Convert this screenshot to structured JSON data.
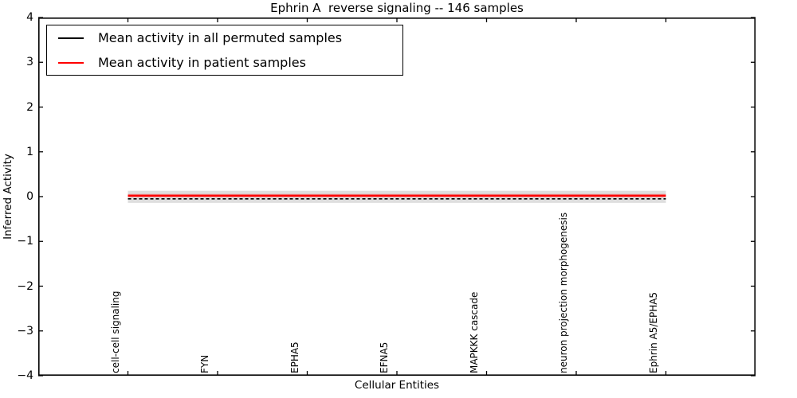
{
  "figure": {
    "background": "#ffffff",
    "frame_color": "#000000"
  },
  "chart_data": {
    "type": "line",
    "title": "Ephrin A  reverse signaling -- 146 samples",
    "xlabel": "Cellular Entities",
    "ylabel": "Inferred Activity",
    "xlim": [
      0,
      8
    ],
    "ylim": [
      -4,
      4
    ],
    "grid": false,
    "tick_style": "inward-all-sides",
    "ytick_values": [
      4,
      3,
      2,
      1,
      0,
      -1,
      -2,
      -3,
      -4
    ],
    "ytick_labels": [
      "4",
      "3",
      "2",
      "1",
      "0",
      "−1",
      "−2",
      "−3",
      "−4"
    ],
    "x_positions": [
      1,
      2,
      3,
      4,
      5,
      6,
      7
    ],
    "categories": [
      "cell-cell signaling",
      "FYN",
      "EPHA5",
      "EFNA5",
      "MAPKKK cascade",
      "neuron projection morphogenesis",
      "Ephrin A5/EPHA5"
    ],
    "series": [
      {
        "name": "Mean activity in all permuted samples",
        "color": "#000000",
        "line_style": "dashed",
        "values": [
          -0.05,
          -0.05,
          -0.05,
          -0.05,
          -0.05,
          -0.05,
          -0.05
        ]
      },
      {
        "name": "Mean activity in patient samples",
        "color": "#ff0000",
        "line_style": "solid",
        "values": [
          0.02,
          0.02,
          0.02,
          0.02,
          0.02,
          0.02,
          0.02
        ]
      }
    ],
    "bands": [
      {
        "name": "permuted-samples-spread-band",
        "color": "#888888",
        "opacity": 0.28,
        "low": -0.14,
        "high": 0.13
      },
      {
        "name": "patient-samples-spread-band",
        "color": "#ff0000",
        "opacity": 0.25,
        "low": -0.01,
        "high": 0.06
      }
    ],
    "legend": {
      "position": "upper-left",
      "entries": [
        {
          "label": "Mean activity in all permuted samples",
          "color": "#000000"
        },
        {
          "label": "Mean activity in patient samples",
          "color": "#ff0000"
        }
      ]
    }
  }
}
